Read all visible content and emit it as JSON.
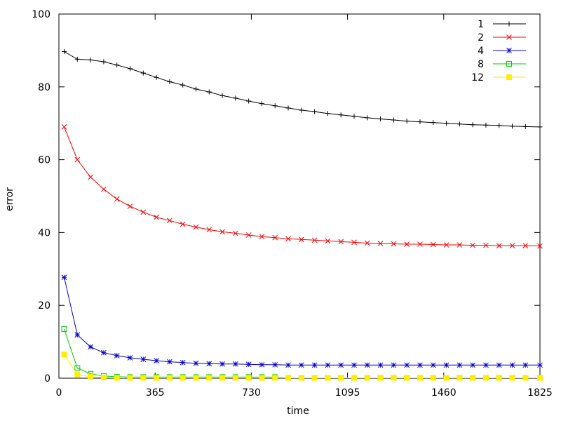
{
  "chart_data": {
    "type": "line",
    "xlabel": "time",
    "ylabel": "error",
    "xlim": [
      0,
      1825
    ],
    "ylim": [
      0,
      100
    ],
    "xticks": [
      0,
      365,
      730,
      1095,
      1460,
      1825
    ],
    "yticks": [
      0,
      20,
      40,
      60,
      80,
      100
    ],
    "grid": false,
    "legend_position": "top-right",
    "x": [
      20,
      70,
      120,
      170,
      220,
      270,
      320,
      370,
      420,
      470,
      520,
      570,
      620,
      670,
      720,
      770,
      820,
      870,
      920,
      970,
      1020,
      1070,
      1120,
      1170,
      1220,
      1270,
      1320,
      1370,
      1420,
      1470,
      1520,
      1570,
      1620,
      1670,
      1720,
      1770,
      1825
    ],
    "series": [
      {
        "name": "1",
        "color": "#000000",
        "marker": "plus",
        "values": [
          89.7,
          87.6,
          87.4,
          86.9,
          86.0,
          85.0,
          83.8,
          82.6,
          81.4,
          80.5,
          79.4,
          78.6,
          77.6,
          76.9,
          76.1,
          75.4,
          74.8,
          74.2,
          73.6,
          73.2,
          72.7,
          72.3,
          71.9,
          71.5,
          71.2,
          70.9,
          70.6,
          70.4,
          70.2,
          70.0,
          69.8,
          69.6,
          69.5,
          69.4,
          69.2,
          69.1,
          69.0
        ]
      },
      {
        "name": "2",
        "color": "#ff0000",
        "marker": "x",
        "values": [
          69.0,
          60.0,
          55.2,
          51.9,
          49.2,
          47.2,
          45.6,
          44.2,
          43.3,
          42.3,
          41.5,
          40.8,
          40.2,
          39.8,
          39.3,
          38.9,
          38.6,
          38.3,
          38.1,
          37.9,
          37.7,
          37.5,
          37.3,
          37.1,
          37.0,
          36.9,
          36.8,
          36.8,
          36.7,
          36.6,
          36.6,
          36.5,
          36.5,
          36.4,
          36.4,
          36.4,
          36.3
        ]
      },
      {
        "name": "4",
        "color": "#0000cc",
        "marker": "star",
        "values": [
          27.7,
          11.9,
          8.6,
          7.0,
          6.2,
          5.6,
          5.2,
          4.8,
          4.5,
          4.3,
          4.1,
          4.0,
          3.9,
          3.9,
          3.8,
          3.7,
          3.7,
          3.6,
          3.6,
          3.6,
          3.6,
          3.6,
          3.6,
          3.6,
          3.6,
          3.6,
          3.6,
          3.6,
          3.6,
          3.6,
          3.6,
          3.6,
          3.6,
          3.6,
          3.6,
          3.6,
          3.6
        ]
      },
      {
        "name": "8",
        "color": "#00cc00",
        "marker": "open-square",
        "values": [
          13.5,
          2.8,
          1.2,
          0.6,
          0.4,
          0.3,
          0.3,
          0.3,
          0.3,
          0.3,
          0.3,
          0.3,
          0.3,
          0.3,
          0.3,
          0.3,
          0.3,
          0.1,
          0.1,
          0.1,
          0.1,
          0.1,
          0.1,
          0.1,
          0.1,
          0.1,
          0.1,
          0.1,
          0.1,
          0.1,
          0.1,
          0.1,
          0.1,
          0.1,
          0.1,
          0.1,
          0.1
        ]
      },
      {
        "name": "12",
        "color": "#ffee00",
        "marker": "filled-square",
        "values": [
          6.5,
          1.0,
          0.4,
          0.2,
          0.1,
          0.1,
          0.1,
          0.1,
          0.1,
          0.1,
          0.1,
          0.1,
          0.1,
          0.1,
          0.1,
          0.1,
          0.1,
          0.1,
          0.1,
          0.1,
          0.1,
          0.1,
          0.1,
          0.1,
          0.1,
          0.1,
          0.1,
          0.1,
          0.1,
          0.1,
          0.1,
          0.1,
          0.1,
          0.1,
          0.1,
          0.1,
          0.1
        ]
      }
    ]
  }
}
